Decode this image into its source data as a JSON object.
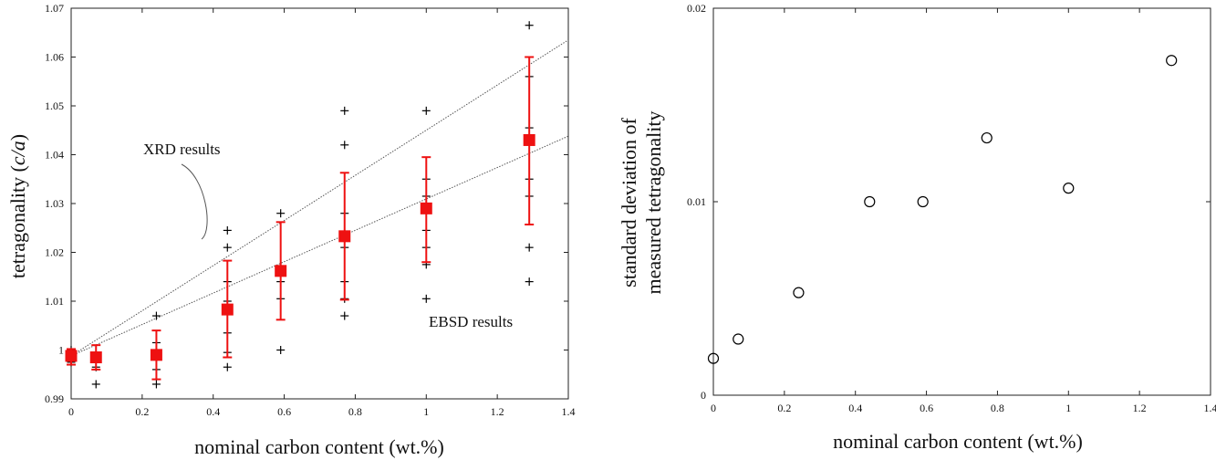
{
  "chart_data": [
    {
      "type": "scatter",
      "title": "",
      "xlabel": "nominal carbon content (wt.%)",
      "ylabel": "tetragonality",
      "ylabel_italic": "c/a",
      "xlim": [
        0,
        1.4
      ],
      "ylim": [
        0.99,
        1.07
      ],
      "grid": false,
      "x_ticks": [
        "0",
        "0.2",
        "0.4",
        "0.6",
        "0.8",
        "1",
        "1.2",
        "1.4"
      ],
      "y_ticks": [
        "0.99",
        "1",
        "1.01",
        "1.02",
        "1.03",
        "1.04",
        "1.05",
        "1.06",
        "1.07"
      ],
      "annotations": [
        {
          "text": "XRD results"
        },
        {
          "text": "EBSD results"
        }
      ],
      "colors": {
        "mean_marker": "#ee1111",
        "error_bar": "#ee1111",
        "individual": "#000000",
        "trend_line": "#555555"
      },
      "series": [
        {
          "marker": "filled-square",
          "points": [
            {
              "x": 0.0,
              "y": 0.9988,
              "ylo": 0.997,
              "yhi": 1.0002
            },
            {
              "x": 0.07,
              "y": 0.9985,
              "ylo": 0.996,
              "yhi": 1.001
            },
            {
              "x": 0.24,
              "y": 0.999,
              "ylo": 0.994,
              "yhi": 1.004
            },
            {
              "x": 0.44,
              "y": 1.0083,
              "ylo": 0.9985,
              "yhi": 1.0183
            },
            {
              "x": 0.59,
              "y": 1.0162,
              "ylo": 1.0062,
              "yhi": 1.0262
            },
            {
              "x": 0.77,
              "y": 1.0233,
              "ylo": 1.0103,
              "yhi": 1.0363
            },
            {
              "x": 1.0,
              "y": 1.029,
              "ylo": 1.018,
              "yhi": 1.0395
            },
            {
              "x": 1.29,
              "y": 1.043,
              "ylo": 1.0257,
              "yhi": 1.06
            }
          ]
        },
        {
          "marker": "plus",
          "points": [
            {
              "x": 0.0,
              "y": 1.0
            },
            {
              "x": 0.0,
              "y": 0.9975
            },
            {
              "x": 0.07,
              "y": 0.999
            },
            {
              "x": 0.07,
              "y": 0.9965
            },
            {
              "x": 0.07,
              "y": 0.993
            },
            {
              "x": 0.24,
              "y": 1.007
            },
            {
              "x": 0.24,
              "y": 1.0015
            },
            {
              "x": 0.24,
              "y": 0.996
            },
            {
              "x": 0.24,
              "y": 0.993
            },
            {
              "x": 0.44,
              "y": 1.0245
            },
            {
              "x": 0.44,
              "y": 1.021
            },
            {
              "x": 0.44,
              "y": 1.014
            },
            {
              "x": 0.44,
              "y": 1.01
            },
            {
              "x": 0.44,
              "y": 1.0035
            },
            {
              "x": 0.44,
              "y": 0.9995
            },
            {
              "x": 0.44,
              "y": 0.9965
            },
            {
              "x": 0.59,
              "y": 1.028
            },
            {
              "x": 0.59,
              "y": 1.014
            },
            {
              "x": 0.59,
              "y": 1.0105
            },
            {
              "x": 0.59,
              "y": 1.0
            },
            {
              "x": 0.77,
              "y": 1.049
            },
            {
              "x": 0.77,
              "y": 1.042
            },
            {
              "x": 0.77,
              "y": 1.028
            },
            {
              "x": 0.77,
              "y": 1.021
            },
            {
              "x": 0.77,
              "y": 1.014
            },
            {
              "x": 0.77,
              "y": 1.0105
            },
            {
              "x": 0.77,
              "y": 1.007
            },
            {
              "x": 1.0,
              "y": 1.049
            },
            {
              "x": 1.0,
              "y": 1.035
            },
            {
              "x": 1.0,
              "y": 1.0315
            },
            {
              "x": 1.0,
              "y": 1.0245
            },
            {
              "x": 1.0,
              "y": 1.021
            },
            {
              "x": 1.0,
              "y": 1.0175
            },
            {
              "x": 1.0,
              "y": 1.0105
            },
            {
              "x": 1.29,
              "y": 1.0665
            },
            {
              "x": 1.29,
              "y": 1.056
            },
            {
              "x": 1.29,
              "y": 1.0455
            },
            {
              "x": 1.29,
              "y": 1.035
            },
            {
              "x": 1.29,
              "y": 1.0315
            },
            {
              "x": 1.29,
              "y": 1.021
            },
            {
              "x": 1.29,
              "y": 1.014
            }
          ]
        }
      ],
      "trend_lines": [
        {
          "label": "XRD results",
          "x": [
            0,
            1.4
          ],
          "y": [
            0.9988,
            1.0635
          ]
        },
        {
          "label": "EBSD results",
          "x": [
            0,
            1.4
          ],
          "y": [
            0.9988,
            1.0438
          ]
        }
      ]
    },
    {
      "type": "scatter",
      "title": "",
      "xlabel": "nominal carbon content (wt.%)",
      "ylabel": "standard deviation of measured tetragonality",
      "ylabel_lines": [
        "standard deviation of",
        "measured tetragonality"
      ],
      "xlim": [
        0,
        1.4
      ],
      "ylim": [
        0,
        0.02
      ],
      "grid": false,
      "x_ticks": [
        "0",
        "0.2",
        "0.4",
        "0.6",
        "0.8",
        "1",
        "1.2",
        "1.4"
      ],
      "y_ticks": [
        "0",
        "0.01",
        "0.02"
      ],
      "colors": {
        "marker": "#000000"
      },
      "series": [
        {
          "marker": "open-circle",
          "x": [
            0.0,
            0.07,
            0.24,
            0.44,
            0.59,
            0.77,
            1.0,
            1.29
          ],
          "y": [
            0.0019,
            0.0029,
            0.0053,
            0.01,
            0.01,
            0.0133,
            0.0107,
            0.0173
          ]
        }
      ]
    }
  ]
}
